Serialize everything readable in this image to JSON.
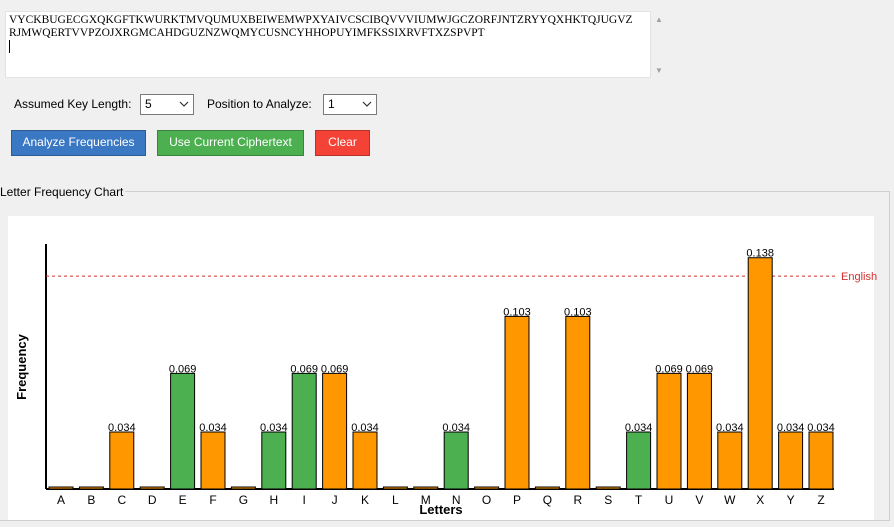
{
  "ciphertext": {
    "line1": "VYCKBUGECGXQKGFTKWURKTMVQUMUXBEIWEMWPXYAIVCSCIBQVVVIUMWJGCZORFJNTZRYYQXHKTQJUGVZ",
    "line2": "RJMWQERTVVPZOJXRGMCAHDGUZNZWQMYCUSNCYHHOPUYIMFKSSIXRVFTXZSPVPT"
  },
  "controls": {
    "key_length_label": "Assumed Key Length:",
    "key_length_value": "5",
    "position_label": "Position to Analyze:",
    "position_value": "1"
  },
  "buttons": {
    "analyze": "Analyze Frequencies",
    "use_current": "Use Current Ciphertext",
    "clear": "Clear"
  },
  "colors": {
    "analyze": "#3b78c4",
    "use_current": "#4caf50",
    "clear": "#f44336",
    "bar_green": "#4caf50",
    "bar_orange": "#ff9800",
    "reference_line": "#d32f2f"
  },
  "group_title": "Letter Frequency Chart",
  "chart_data": {
    "type": "bar",
    "title": "",
    "xlabel": "Letters",
    "ylabel": "Frequency",
    "ylim": [
      0,
      0.145
    ],
    "grid": false,
    "categories": [
      "A",
      "B",
      "C",
      "D",
      "E",
      "F",
      "G",
      "H",
      "I",
      "J",
      "K",
      "L",
      "M",
      "N",
      "O",
      "P",
      "Q",
      "R",
      "S",
      "T",
      "U",
      "V",
      "W",
      "X",
      "Y",
      "Z"
    ],
    "values": [
      0,
      0,
      0.034,
      0,
      0.069,
      0.034,
      0,
      0.034,
      0.069,
      0.069,
      0.034,
      0,
      0,
      0.034,
      0,
      0.103,
      0,
      0.103,
      0,
      0.034,
      0.069,
      0.069,
      0.034,
      0.138,
      0.034,
      0.034
    ],
    "labels": [
      "",
      "",
      "0.034",
      "",
      "0.069",
      "0.034",
      "",
      "0.034",
      "0.069",
      "0.069",
      "0.034",
      "",
      "",
      "0.034",
      "",
      "0.103",
      "",
      "0.103",
      "",
      "0.034",
      "0.069",
      "0.069",
      "0.034",
      "0.138",
      "0.034",
      "0.034"
    ],
    "bar_colors": [
      "orange",
      "orange",
      "orange",
      "orange",
      "green",
      "orange",
      "orange",
      "green",
      "green",
      "orange",
      "orange",
      "orange",
      "orange",
      "green",
      "orange",
      "orange",
      "orange",
      "orange",
      "orange",
      "green",
      "orange",
      "orange",
      "orange",
      "orange",
      "orange",
      "orange"
    ],
    "reference_label": "English",
    "reference_value": 0.127
  }
}
